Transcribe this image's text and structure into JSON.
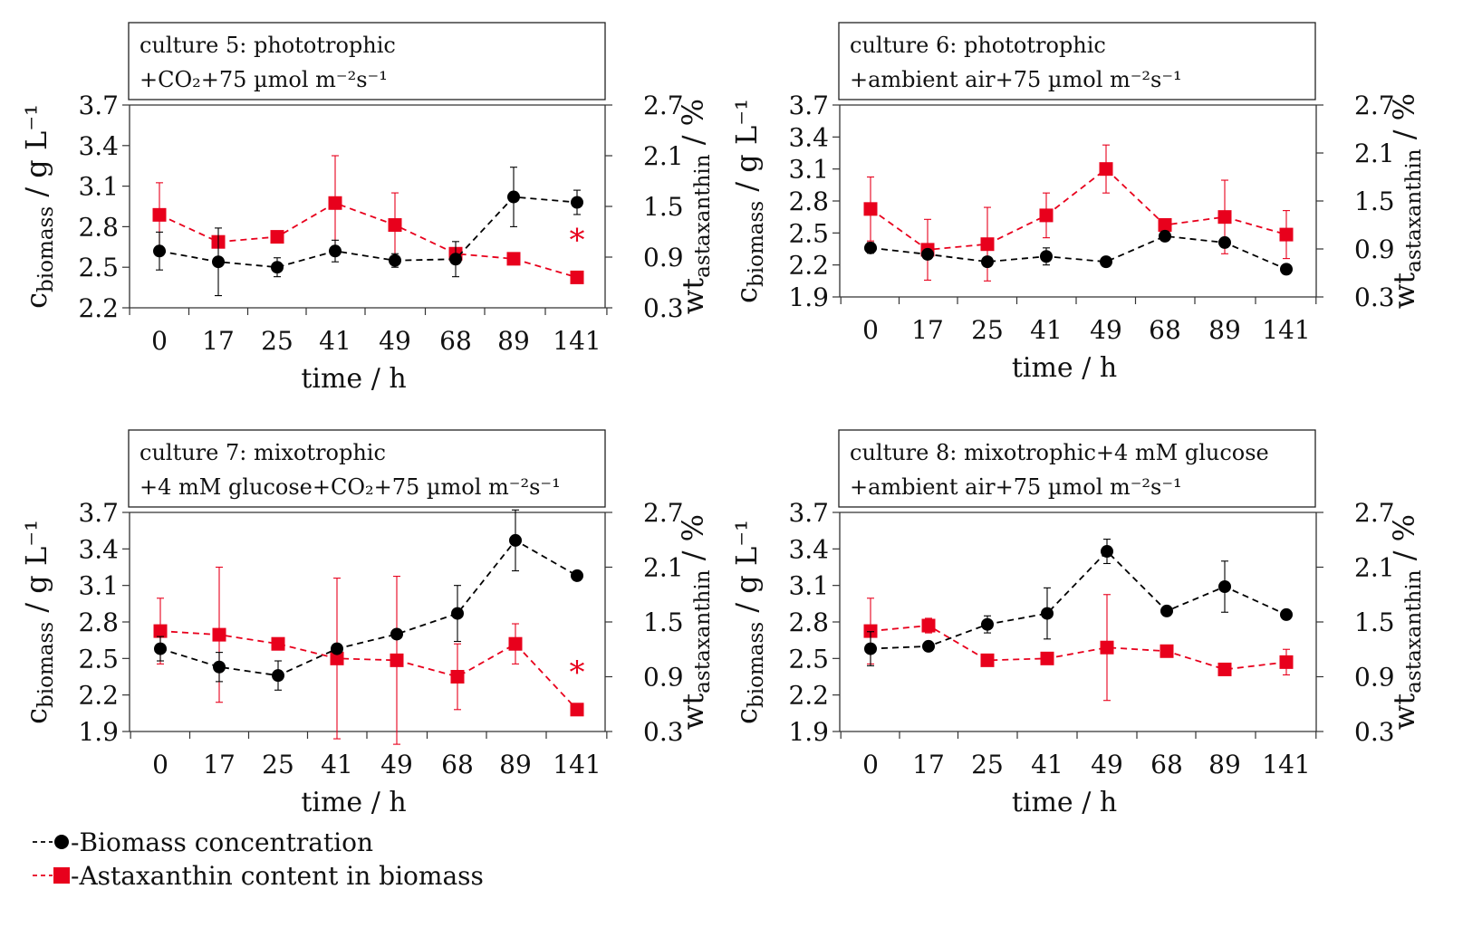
{
  "chart_data": [
    {
      "type": "line",
      "title_lines": [
        "culture 5: phototrophic",
        "+CO₂+75 µmol m⁻²s⁻¹"
      ],
      "categories": [
        "0",
        "17",
        "25",
        "41",
        "49",
        "68",
        "89",
        "141"
      ],
      "xlabel": "time / h",
      "ylabel": "c_biomass / g L⁻¹",
      "ylim": [
        2.2,
        3.7
      ],
      "yticks": [
        2.2,
        2.5,
        2.8,
        3.1,
        3.4,
        3.7
      ],
      "y2label": "wt_astaxanthin / %",
      "y2lim": [
        0.3,
        2.7
      ],
      "y2ticks": [
        0.3,
        0.9,
        1.5,
        2.1,
        2.7
      ],
      "annotation": "*",
      "series": [
        {
          "name": "Biomass concentration",
          "axis": "left",
          "color": "#000000",
          "marker": "circle",
          "values": [
            2.62,
            2.54,
            2.5,
            2.62,
            2.55,
            2.56,
            3.02,
            2.98
          ],
          "errors": [
            0.14,
            0.25,
            0.07,
            0.08,
            0.05,
            0.13,
            0.22,
            0.09
          ]
        },
        {
          "name": "Astaxanthin content in biomass",
          "axis": "right",
          "color": "#e8001c",
          "marker": "square",
          "values": [
            1.4,
            1.08,
            1.14,
            1.54,
            1.28,
            0.94,
            0.88,
            0.66
          ],
          "errors": [
            0.38,
            0.0,
            0.0,
            0.56,
            0.38,
            0.0,
            0.0,
            0.0
          ]
        }
      ]
    },
    {
      "type": "line",
      "title_lines": [
        "culture 6: phototrophic",
        "+ambient air+75 µmol m⁻²s⁻¹"
      ],
      "categories": [
        "0",
        "17",
        "25",
        "41",
        "49",
        "68",
        "89",
        "141"
      ],
      "xlabel": "time / h",
      "ylabel": "c_biomass / g L⁻¹",
      "ylim": [
        1.9,
        3.7
      ],
      "yticks": [
        1.9,
        2.2,
        2.5,
        2.8,
        3.1,
        3.4,
        3.7
      ],
      "y2label": "wt_astaxanthin / %",
      "y2lim": [
        0.3,
        2.7
      ],
      "y2ticks": [
        0.3,
        0.9,
        1.5,
        2.1,
        2.7
      ],
      "series": [
        {
          "name": "Biomass concentration",
          "axis": "left",
          "color": "#000000",
          "marker": "circle",
          "values": [
            2.36,
            2.3,
            2.23,
            2.28,
            2.23,
            2.47,
            2.41,
            2.16
          ],
          "errors": [
            0.05,
            0.0,
            0.0,
            0.08,
            0.0,
            0.0,
            0.0,
            0.0
          ]
        },
        {
          "name": "Astaxanthin content in biomass",
          "axis": "right",
          "color": "#e8001c",
          "marker": "square",
          "values": [
            1.4,
            0.89,
            0.96,
            1.32,
            1.9,
            1.2,
            1.3,
            1.08
          ],
          "errors": [
            0.4,
            0.38,
            0.46,
            0.28,
            0.3,
            0.0,
            0.46,
            0.3
          ]
        }
      ]
    },
    {
      "type": "line",
      "title_lines": [
        "culture 7: mixotrophic",
        "+4 mM glucose+CO₂+75 µmol m⁻²s⁻¹"
      ],
      "categories": [
        "0",
        "17",
        "25",
        "41",
        "49",
        "68",
        "89",
        "141"
      ],
      "xlabel": "time / h",
      "ylabel": "c_biomass / g L⁻¹",
      "ylim": [
        1.9,
        3.7
      ],
      "yticks": [
        1.9,
        2.2,
        2.5,
        2.8,
        3.1,
        3.4,
        3.7
      ],
      "y2label": "wt_astaxanthin / %",
      "y2lim": [
        0.3,
        2.7
      ],
      "y2ticks": [
        0.3,
        0.9,
        1.5,
        2.1,
        2.7
      ],
      "annotation": "*",
      "series": [
        {
          "name": "Biomass concentration",
          "axis": "left",
          "color": "#000000",
          "marker": "circle",
          "values": [
            2.58,
            2.43,
            2.36,
            2.58,
            2.7,
            2.87,
            3.47,
            3.18
          ],
          "errors": [
            0.1,
            0.12,
            0.12,
            0.0,
            0.0,
            0.23,
            0.25,
            0.0
          ]
        },
        {
          "name": "Astaxanthin content in biomass",
          "axis": "right",
          "color": "#e8001c",
          "marker": "square",
          "values": [
            1.4,
            1.36,
            1.26,
            1.1,
            1.08,
            0.9,
            1.26,
            0.54
          ],
          "errors": [
            0.36,
            0.74,
            0.0,
            0.88,
            0.92,
            0.36,
            0.22,
            0.0
          ]
        }
      ]
    },
    {
      "type": "line",
      "title_lines": [
        "culture 8: mixotrophic+4 mM glucose",
        "+ambient air+75 µmol m⁻²s⁻¹"
      ],
      "categories": [
        "0",
        "17",
        "25",
        "41",
        "49",
        "68",
        "89",
        "141"
      ],
      "xlabel": "time / h",
      "ylabel": "c_biomass / g L⁻¹",
      "ylim": [
        1.9,
        3.7
      ],
      "yticks": [
        1.9,
        2.2,
        2.5,
        2.8,
        3.1,
        3.4,
        3.7
      ],
      "y2label": "wt_astaxanthin / %",
      "y2lim": [
        0.3,
        2.7
      ],
      "y2ticks": [
        0.3,
        0.9,
        1.5,
        2.1,
        2.7
      ],
      "series": [
        {
          "name": "Biomass concentration",
          "axis": "left",
          "color": "#000000",
          "marker": "circle",
          "values": [
            2.58,
            2.6,
            2.78,
            2.87,
            3.38,
            2.89,
            3.09,
            2.86
          ],
          "errors": [
            0.14,
            0.0,
            0.07,
            0.21,
            0.1,
            0.0,
            0.21,
            0.0
          ]
        },
        {
          "name": "Astaxanthin content in biomass",
          "axis": "right",
          "color": "#e8001c",
          "marker": "square",
          "values": [
            1.4,
            1.46,
            1.08,
            1.1,
            1.22,
            1.18,
            0.98,
            1.06
          ],
          "errors": [
            0.36,
            0.08,
            0.0,
            0.0,
            0.58,
            0.0,
            0.0,
            0.14
          ]
        }
      ]
    }
  ],
  "legend": [
    {
      "label": "-Biomass concentration",
      "color": "#000000",
      "marker": "circle"
    },
    {
      "label": "-Astaxanthin content in biomass",
      "color": "#e8001c",
      "marker": "square"
    }
  ]
}
